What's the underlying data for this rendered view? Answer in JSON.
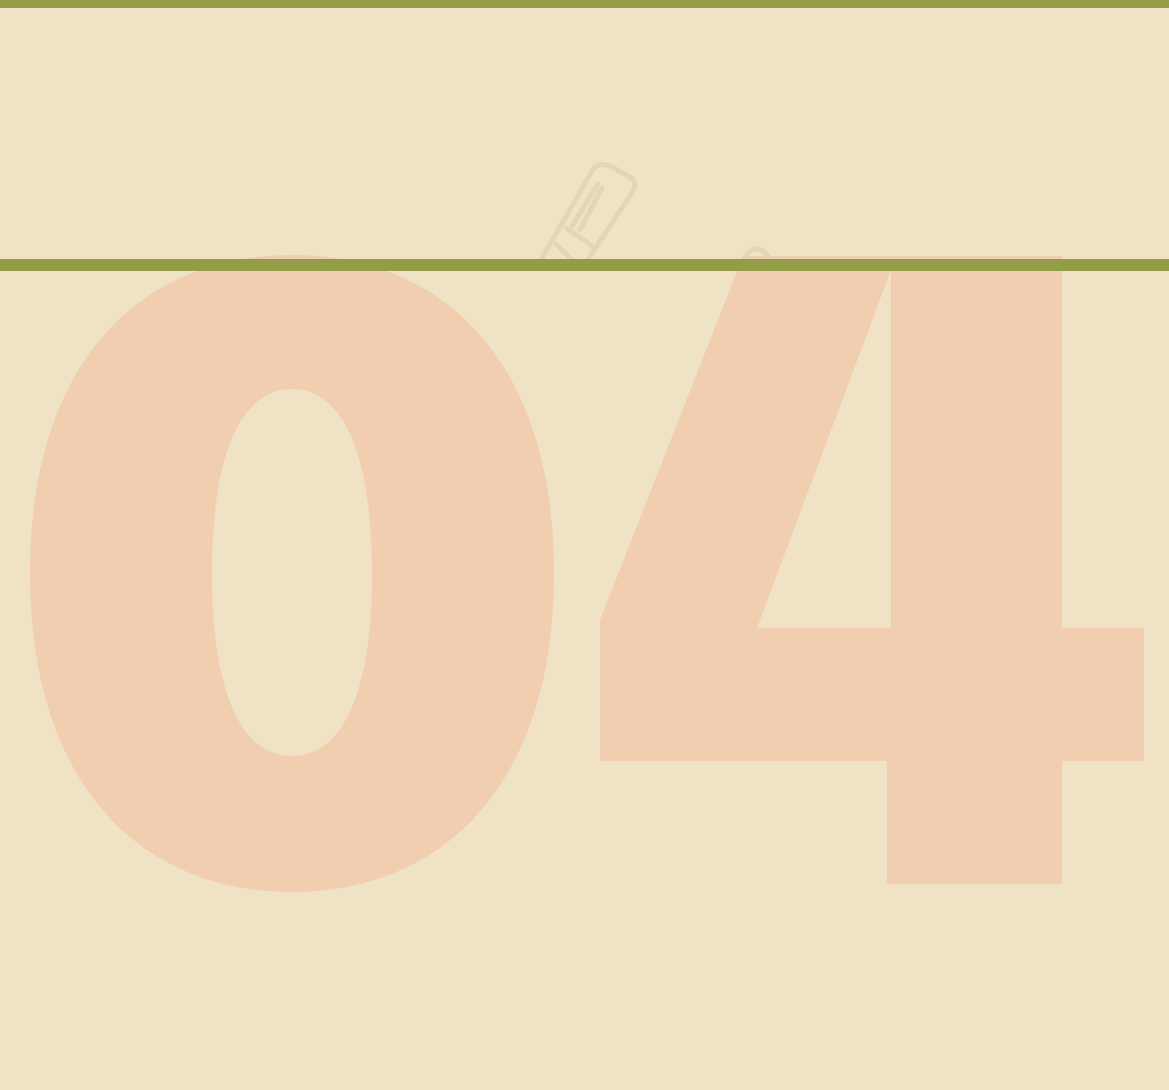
{
  "section": {
    "number": "04"
  },
  "colors": {
    "background": "#f0e2c4",
    "rule": "#939c46",
    "numeral": "#f0ceaf",
    "sketch": "#e3d6b4"
  },
  "icons": {
    "sketch": "pencil-sketch-icon"
  }
}
